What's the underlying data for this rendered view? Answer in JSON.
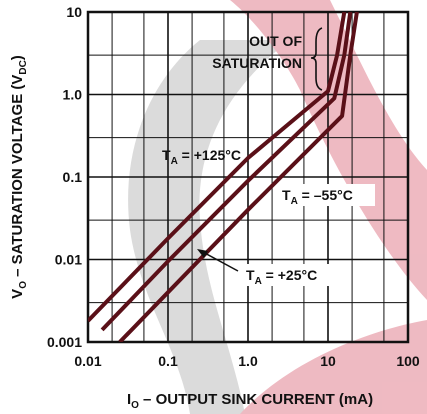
{
  "chart_data": {
    "type": "line",
    "title": "",
    "xlabel_main": "I",
    "xlabel_sub": "O",
    "xlabel_rest": " – OUTPUT SINK CURRENT (mA)",
    "ylabel_main": "V",
    "ylabel_sub": "O",
    "ylabel_rest": " – SATURATION VOLTAGE (V",
    "ylabel_unit_sub": "DC",
    "ylabel_close": ")",
    "x_scale": "log",
    "y_scale": "log",
    "xlim": [
      0.01,
      100
    ],
    "ylim": [
      0.001,
      10
    ],
    "x_ticks": [
      "0.01",
      "0.1",
      "1.0",
      "10",
      "100"
    ],
    "y_ticks": [
      "0.001",
      "0.01",
      "0.1",
      "1.0",
      "10"
    ],
    "grid": true,
    "series": [
      {
        "name": "T_A = +125°C",
        "x": [
          0.01,
          0.1,
          1.0,
          10,
          13,
          16
        ],
        "y": [
          0.0018,
          0.018,
          0.17,
          1.1,
          3.0,
          10
        ]
      },
      {
        "name": "T_A = +25°C",
        "x": [
          0.015,
          0.1,
          1.0,
          12,
          16,
          19
        ],
        "y": [
          0.0014,
          0.0095,
          0.09,
          0.9,
          3.0,
          10
        ]
      },
      {
        "name": "T_A = -55°C",
        "x": [
          0.025,
          0.1,
          1.0,
          15,
          19,
          23
        ],
        "y": [
          0.001,
          0.004,
          0.04,
          0.55,
          3.0,
          10
        ]
      }
    ],
    "annotations": [
      {
        "id": "t125",
        "pre": "T",
        "sub": "A",
        "post": " = +125°C"
      },
      {
        "id": "tm55",
        "pre": "T",
        "sub": "A",
        "post": " = –55°C"
      },
      {
        "id": "t25",
        "pre": "T",
        "sub": "A",
        "post": " = +25°C"
      },
      {
        "id": "oos1",
        "text": "OUT OF"
      },
      {
        "id": "oos2",
        "text": "SATURATION"
      }
    ]
  }
}
